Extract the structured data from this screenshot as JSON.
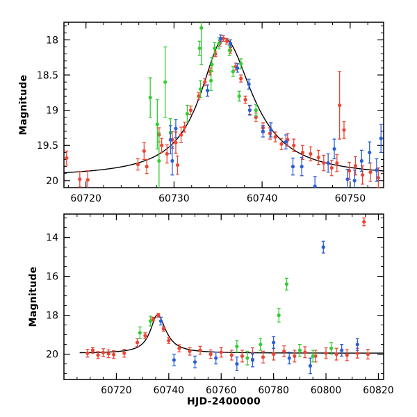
{
  "chart_data": [
    {
      "type": "scatter",
      "title": "",
      "xlabel": "",
      "ylabel": "Magnitude",
      "xlim": [
        60717.5,
        60753.8
      ],
      "ylim": [
        20.1,
        17.75
      ],
      "y_inverted": true,
      "x_ticks": [
        60720,
        60730,
        60740,
        60750
      ],
      "x_tick_labels": [
        "60720",
        "60730",
        "60740",
        "60750"
      ],
      "y_ticks": [
        18,
        18.5,
        19,
        19.5,
        20
      ],
      "y_tick_labels": [
        "18",
        "18.5",
        "19",
        "19.5",
        "20"
      ],
      "model_curve": {
        "peak_time": 60735.7,
        "peak_mag": 17.98,
        "base_mag": 19.95,
        "rise_timescale": 3.3,
        "fall_timescale": 3.9
      },
      "series": [
        {
          "color": "#ef4433",
          "points": [
            [
              60717.8,
              19.68,
              0.1
            ],
            [
              60719.3,
              19.98,
              0.11
            ],
            [
              60720.2,
              19.99,
              0.13
            ],
            [
              60725.9,
              19.77,
              0.08
            ],
            [
              60726.6,
              19.58,
              0.12
            ],
            [
              60726.9,
              19.8,
              0.1
            ],
            [
              60728.3,
              19.35,
              0.1
            ],
            [
              60728.6,
              19.5,
              0.1
            ],
            [
              60729.2,
              19.62,
              0.13
            ],
            [
              60729.8,
              19.42,
              0.12
            ],
            [
              60730.2,
              19.46,
              0.15
            ],
            [
              60730.4,
              19.78,
              0.13
            ],
            [
              60730.8,
              19.35,
              0.11
            ],
            [
              60731.2,
              19.24,
              0.07
            ],
            [
              60731.9,
              19.0,
              0.06
            ],
            [
              60732.8,
              18.8,
              0.05
            ],
            [
              60733.5,
              18.6,
              0.05
            ],
            [
              60734.1,
              18.45,
              0.05
            ],
            [
              60734.7,
              18.2,
              0.04
            ],
            [
              60735.2,
              18.05,
              0.04
            ],
            [
              60735.6,
              17.98,
              0.04
            ],
            [
              60736.0,
              18.02,
              0.04
            ],
            [
              60736.4,
              18.15,
              0.04
            ],
            [
              60737.0,
              18.38,
              0.05
            ],
            [
              60737.6,
              18.55,
              0.05
            ],
            [
              60738.1,
              18.85,
              0.05
            ],
            [
              60738.6,
              19.0,
              0.06
            ],
            [
              60739.3,
              19.1,
              0.06
            ],
            [
              60740.1,
              19.25,
              0.07
            ],
            [
              60740.9,
              19.33,
              0.08
            ],
            [
              60741.5,
              19.38,
              0.07
            ],
            [
              60742.2,
              19.48,
              0.08
            ],
            [
              60742.9,
              19.42,
              0.09
            ],
            [
              60743.6,
              19.5,
              0.09
            ],
            [
              60744.6,
              19.6,
              0.1
            ],
            [
              60745.5,
              19.62,
              0.1
            ],
            [
              60746.4,
              19.67,
              0.1
            ],
            [
              60747.0,
              19.75,
              0.11
            ],
            [
              60747.9,
              19.82,
              0.11
            ],
            [
              60748.5,
              19.75,
              0.12
            ],
            [
              60748.8,
              18.93,
              0.48
            ],
            [
              60749.3,
              19.28,
              0.12
            ],
            [
              60749.9,
              19.86,
              0.12
            ],
            [
              60750.6,
              19.79,
              0.13
            ],
            [
              60751.4,
              19.92,
              0.13
            ],
            [
              60752.3,
              19.88,
              0.13
            ],
            [
              60753.2,
              19.96,
              0.14
            ]
          ]
        },
        {
          "color": "#33cc33",
          "points": [
            [
              60727.3,
              18.82,
              0.28
            ],
            [
              60728.1,
              19.2,
              0.35
            ],
            [
              60728.3,
              19.72,
              0.4
            ],
            [
              60729.0,
              18.6,
              0.5
            ],
            [
              60729.6,
              19.32,
              0.2
            ],
            [
              60731.5,
              19.05,
              0.12
            ],
            [
              60734.3,
              18.35,
              0.1
            ],
            [
              60734.6,
              18.12,
              0.08
            ],
            [
              60735.1,
              18.05,
              0.08
            ],
            [
              60736.3,
              18.15,
              0.07
            ],
            [
              60736.7,
              18.45,
              0.07
            ],
            [
              60737.4,
              18.8,
              0.07
            ],
            [
              60737.6,
              18.34,
              0.07
            ],
            [
              60739.3,
              19.0,
              0.08
            ],
            [
              60734.2,
              18.58,
              0.14
            ],
            [
              60733.0,
              18.7,
              0.12
            ],
            [
              60733.1,
              17.83,
              0.52
            ],
            [
              60732.9,
              18.12,
              0.1
            ]
          ]
        },
        {
          "color": "#2b5fd9",
          "points": [
            [
              60729.6,
              19.42,
              0.2
            ],
            [
              60729.8,
              19.72,
              0.2
            ],
            [
              60730.2,
              19.26,
              0.13
            ],
            [
              60733.8,
              18.72,
              0.08
            ],
            [
              60735.3,
              17.98,
              0.05
            ],
            [
              60736.4,
              18.05,
              0.05
            ],
            [
              60737.2,
              18.4,
              0.06
            ],
            [
              60738.5,
              18.63,
              0.07
            ],
            [
              60738.6,
              19.0,
              0.07
            ],
            [
              60740.1,
              19.3,
              0.08
            ],
            [
              60741.0,
              19.28,
              0.1
            ],
            [
              60742.7,
              19.45,
              0.1
            ],
            [
              60743.5,
              19.8,
              0.12
            ],
            [
              60744.5,
              19.8,
              0.13
            ],
            [
              60746.0,
              20.08,
              0.14
            ],
            [
              60747.5,
              19.75,
              0.13
            ],
            [
              60748.2,
              19.55,
              0.14
            ],
            [
              60749.7,
              19.98,
              0.14
            ],
            [
              60750.5,
              20.0,
              0.15
            ],
            [
              60751.3,
              19.72,
              0.15
            ],
            [
              60752.2,
              19.6,
              0.15
            ],
            [
              60753.0,
              19.85,
              0.16
            ],
            [
              60753.5,
              19.4,
              0.2
            ]
          ]
        }
      ]
    },
    {
      "type": "scatter",
      "title": "",
      "xlabel": "HJD-2400000",
      "ylabel": "Magnitude",
      "xlim": [
        60700,
        60822
      ],
      "ylim": [
        21.3,
        12.8
      ],
      "y_inverted": true,
      "x_ticks": [
        60720,
        60740,
        60760,
        60780,
        60800,
        60820
      ],
      "x_tick_labels": [
        "60720",
        "60740",
        "60760",
        "60780",
        "60800",
        "60820"
      ],
      "y_ticks": [
        14,
        16,
        18,
        20
      ],
      "y_tick_labels": [
        "14",
        "16",
        "18",
        "20"
      ],
      "model_curve": {
        "peak_time": 60735.7,
        "peak_mag": 17.98,
        "base_mag": 19.95,
        "rise_timescale": 3.3,
        "fall_timescale": 3.9,
        "x_range": [
          60706,
          60822
        ]
      },
      "series": [
        {
          "color": "#ef4433",
          "points": [
            [
              60709,
              19.95,
              0.2
            ],
            [
              60711,
              19.8,
              0.15
            ],
            [
              60713,
              20.05,
              0.18
            ],
            [
              60715,
              19.92,
              0.2
            ],
            [
              60717,
              19.98,
              0.2
            ],
            [
              60719,
              20.02,
              0.2
            ],
            [
              60723,
              19.95,
              0.2
            ],
            [
              60728,
              19.4,
              0.2
            ],
            [
              60731,
              19.05,
              0.15
            ],
            [
              60734,
              18.2,
              0.1
            ],
            [
              60736,
              18.0,
              0.1
            ],
            [
              60738,
              18.7,
              0.12
            ],
            [
              60740,
              19.3,
              0.15
            ],
            [
              60744,
              19.7,
              0.18
            ],
            [
              60748,
              19.85,
              0.2
            ],
            [
              60752,
              19.8,
              0.2
            ],
            [
              60756,
              20.0,
              0.22
            ],
            [
              60760,
              19.9,
              0.25
            ],
            [
              60764,
              20.05,
              0.25
            ],
            [
              60768,
              20.1,
              0.3
            ],
            [
              60772,
              19.95,
              0.28
            ],
            [
              60776,
              20.15,
              0.3
            ],
            [
              60780,
              20.0,
              0.3
            ],
            [
              60784,
              19.85,
              0.28
            ],
            [
              60788,
              20.1,
              0.3
            ],
            [
              60792,
              19.9,
              0.28
            ],
            [
              60796,
              20.1,
              0.3
            ],
            [
              60800,
              19.95,
              0.28
            ],
            [
              60804,
              20.0,
              0.3
            ],
            [
              60808,
              20.05,
              0.28
            ],
            [
              60812,
              19.95,
              0.25
            ],
            [
              60814.5,
              13.2,
              0.2
            ],
            [
              60816,
              20.0,
              0.25
            ]
          ]
        },
        {
          "color": "#33cc33",
          "points": [
            [
              60729,
              18.9,
              0.3
            ],
            [
              60733,
              18.3,
              0.25
            ],
            [
              60766,
              19.6,
              0.3
            ],
            [
              60770,
              20.2,
              0.35
            ],
            [
              60775,
              19.5,
              0.3
            ],
            [
              60782,
              18.0,
              0.35
            ],
            [
              60785,
              16.4,
              0.3
            ],
            [
              60790,
              19.8,
              0.3
            ],
            [
              60795,
              20.1,
              0.3
            ],
            [
              60802,
              19.7,
              0.3
            ]
          ]
        },
        {
          "color": "#2b5fd9",
          "points": [
            [
              60737,
              18.3,
              0.2
            ],
            [
              60742,
              20.3,
              0.3
            ],
            [
              60750,
              20.4,
              0.3
            ],
            [
              60758,
              20.2,
              0.3
            ],
            [
              60766,
              20.5,
              0.35
            ],
            [
              60772,
              20.3,
              0.35
            ],
            [
              60780,
              19.4,
              0.3
            ],
            [
              60786,
              20.2,
              0.3
            ],
            [
              60794,
              20.6,
              0.4
            ],
            [
              60799,
              14.5,
              0.3
            ],
            [
              60806,
              19.8,
              0.3
            ],
            [
              60812,
              19.5,
              0.3
            ]
          ]
        }
      ]
    }
  ]
}
